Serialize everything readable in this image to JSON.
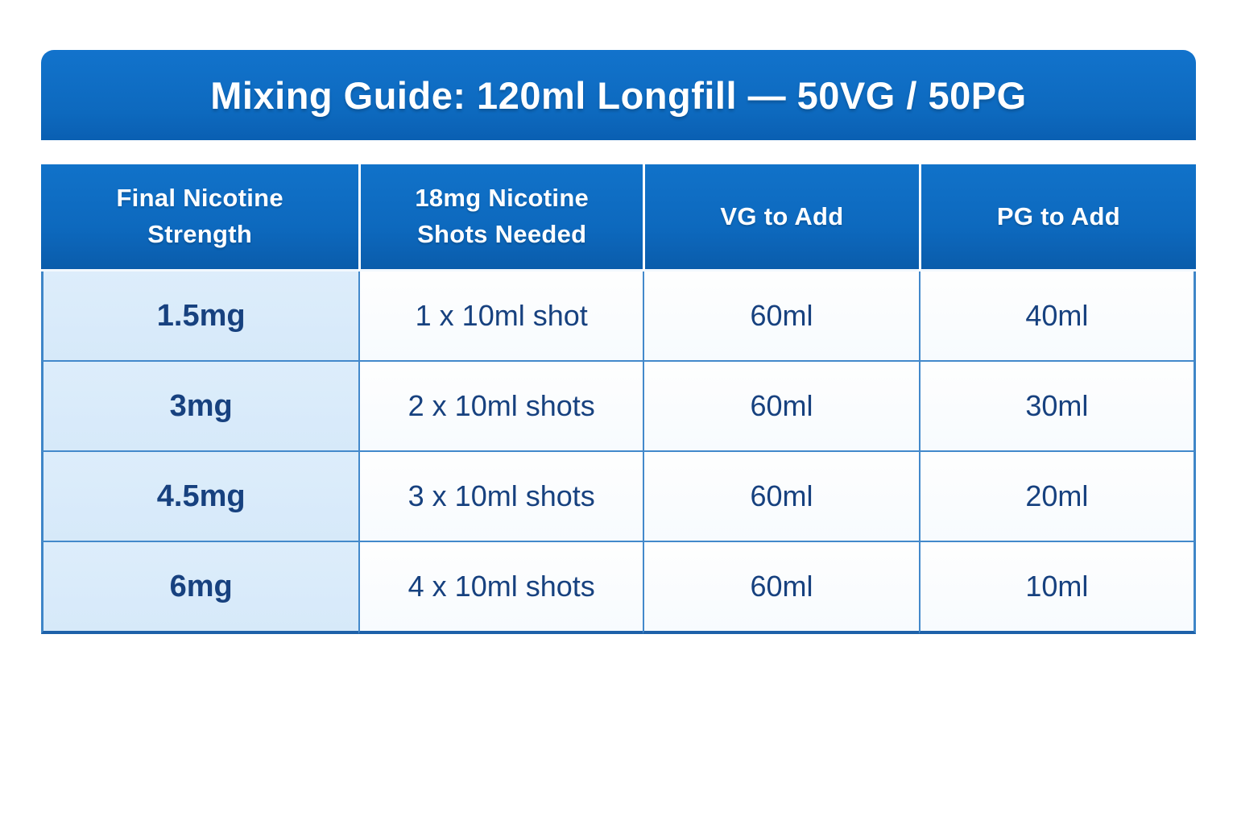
{
  "banner": {
    "title": "Mixing Guide: 120ml Longfill — 50VG / 50PG"
  },
  "colors": {
    "banner_blue": "#0d69be",
    "header_text": "#ffffff",
    "body_text": "#17417f",
    "first_column_bg": "#d8eafa",
    "cell_border": "#4389cb",
    "outer_bottom_border": "#1d61a9"
  },
  "chart_data": {
    "type": "table",
    "title": "Mixing Guide: 120ml Longfill — 50VG / 50PG",
    "columns": [
      "Final Nicotine Strength",
      "18mg Nicotine Shots Needed",
      "VG to Add",
      "PG to Add"
    ],
    "rows": [
      [
        "1.5mg",
        "1 x 10ml shot",
        "60ml",
        "40ml"
      ],
      [
        "3mg",
        "2 x 10ml shots",
        "60ml",
        "30ml"
      ],
      [
        "4.5mg",
        "3 x 10ml shots",
        "60ml",
        "20ml"
      ],
      [
        "6mg",
        "4 x 10ml shots",
        "60ml",
        "10ml"
      ]
    ]
  }
}
